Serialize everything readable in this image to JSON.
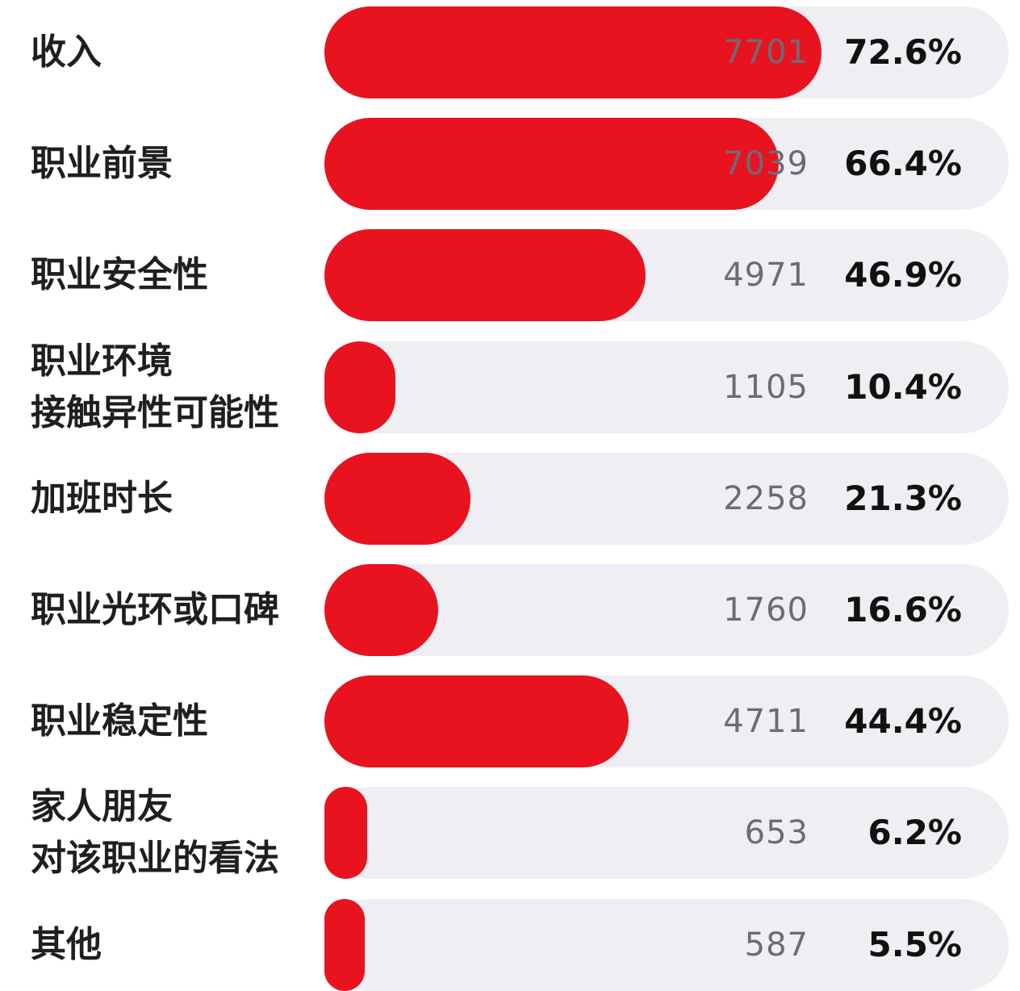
{
  "chart_data": {
    "type": "bar",
    "orientation": "horizontal",
    "categories": [
      [
        "收入"
      ],
      [
        "职业前景"
      ],
      [
        "职业安全性"
      ],
      [
        "职业环境",
        "接触异性可能性"
      ],
      [
        "加班时长"
      ],
      [
        "职业光环或口碑"
      ],
      [
        "职业稳定性"
      ],
      [
        "家人朋友",
        "对该职业的看法"
      ],
      [
        "其他"
      ]
    ],
    "counts": [
      "7701",
      "7039",
      "4971",
      "1105",
      "2258",
      "1760",
      "4711",
      "653",
      "587"
    ],
    "percent_labels": [
      "72.6%",
      "66.4%",
      "46.9%",
      "10.4%",
      "21.3%",
      "16.6%",
      "44.4%",
      "6.2%",
      "5.5%"
    ],
    "values": [
      72.6,
      66.4,
      46.9,
      10.4,
      21.3,
      16.6,
      44.4,
      6.2,
      5.5
    ],
    "xlim": [
      0,
      100
    ],
    "grid": false,
    "legend": "none",
    "colors": {
      "bar": "#e8131f",
      "track": "#efeff3",
      "count_text": "#6e6a78",
      "percent_text": "#111111",
      "label_text": "#1f1f1f"
    }
  }
}
